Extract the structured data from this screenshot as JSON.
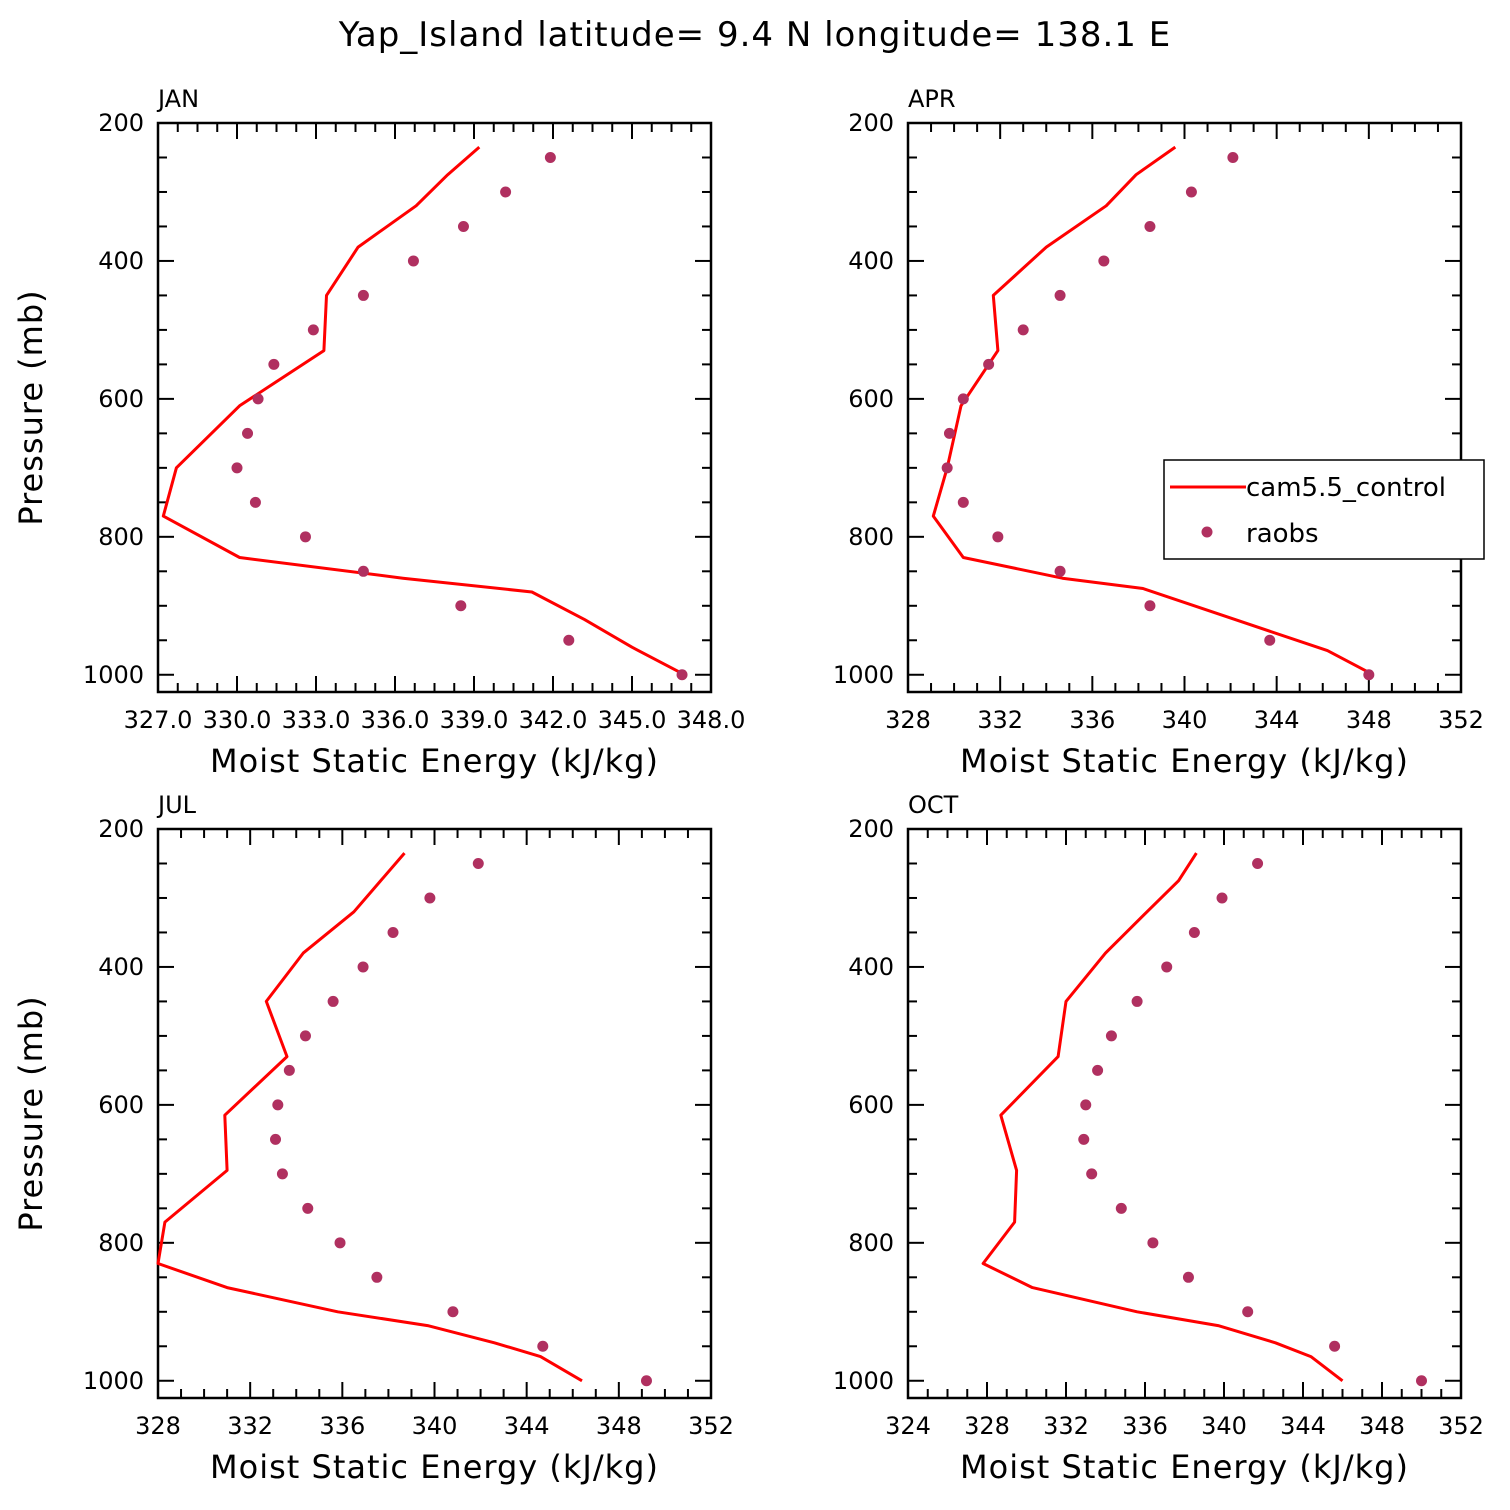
{
  "figure": {
    "title": "Yap_Island  latitude= 9.4 N longitude= 138.1 E",
    "colors": {
      "model": "#ff0000",
      "obs": "#b03060",
      "axis": "#000000"
    }
  },
  "legend": {
    "panel": 1,
    "entries": [
      {
        "label": "cam5.5_control",
        "symbol": "line",
        "color": "#ff0000"
      },
      {
        "label": "raobs",
        "symbol": "dot",
        "color": "#b03060"
      }
    ]
  },
  "chart_data": [
    {
      "type": "line",
      "panel_label": "JAN",
      "xlabel": "Moist Static Energy (kJ/kg)",
      "ylabel": "Pressure (mb)",
      "xlim": [
        327,
        348
      ],
      "ylim": [
        1000,
        200
      ],
      "xticks": [
        327,
        330,
        333,
        336,
        339,
        342,
        345,
        348
      ],
      "xtick_labels": [
        "327.0",
        "330.0",
        "333.0",
        "336.0",
        "339.0",
        "342.0",
        "345.0",
        "348.0"
      ],
      "yticks": [
        200,
        400,
        600,
        800,
        1000
      ],
      "ytick_labels": [
        "200",
        "400",
        "600",
        "800",
        "1000"
      ],
      "show_ylabel": true,
      "series": [
        {
          "name": "cam5.5_control",
          "kind": "line",
          "x": [
            347.0,
            345.0,
            343.2,
            341.2,
            336.3,
            330.1,
            327.2,
            327.7,
            330.1,
            333.3,
            333.4,
            334.6,
            336.8,
            338.0,
            339.2
          ],
          "y": [
            1000,
            960,
            920,
            880,
            860,
            830,
            770,
            700,
            610,
            530,
            450,
            380,
            320,
            275,
            235
          ]
        },
        {
          "name": "raobs",
          "kind": "dots",
          "x": [
            346.9,
            342.6,
            338.5,
            334.8,
            332.6,
            330.7,
            330.0,
            330.4,
            330.8,
            331.4,
            332.9,
            334.8,
            336.7,
            338.6,
            340.2,
            341.9
          ],
          "y": [
            1000,
            950,
            900,
            850,
            800,
            750,
            700,
            650,
            600,
            550,
            500,
            450,
            400,
            350,
            300,
            250
          ]
        }
      ]
    },
    {
      "type": "line",
      "panel_label": "APR",
      "xlabel": "Moist Static Energy (kJ/kg)",
      "ylabel": "",
      "xlim": [
        328,
        352
      ],
      "ylim": [
        1000,
        200
      ],
      "xticks": [
        328,
        332,
        336,
        340,
        344,
        348,
        352
      ],
      "xtick_labels": [
        "328",
        "332",
        "336",
        "340",
        "344",
        "348",
        "352"
      ],
      "yticks": [
        200,
        400,
        600,
        800,
        1000
      ],
      "ytick_labels": [
        "200",
        "400",
        "600",
        "800",
        "1000"
      ],
      "show_ylabel": false,
      "series": [
        {
          "name": "cam5.5_control",
          "kind": "line",
          "x": [
            348.2,
            346.2,
            342.2,
            338.2,
            334.7,
            330.4,
            329.1,
            329.7,
            330.3,
            331.9,
            331.7,
            334.0,
            336.6,
            337.9,
            339.6
          ],
          "y": [
            1000,
            965,
            920,
            875,
            860,
            830,
            770,
            700,
            610,
            530,
            450,
            380,
            320,
            275,
            235
          ]
        },
        {
          "name": "raobs",
          "kind": "dots",
          "x": [
            348.0,
            343.7,
            338.5,
            334.6,
            331.9,
            330.4,
            329.7,
            329.8,
            330.4,
            331.5,
            333.0,
            334.6,
            336.5,
            338.5,
            340.3,
            342.1
          ],
          "y": [
            1000,
            950,
            900,
            850,
            800,
            750,
            700,
            650,
            600,
            550,
            500,
            450,
            400,
            350,
            300,
            250
          ]
        }
      ]
    },
    {
      "type": "line",
      "panel_label": "JUL",
      "xlabel": "Moist Static Energy (kJ/kg)",
      "ylabel": "Pressure (mb)",
      "xlim": [
        328,
        352
      ],
      "ylim": [
        1000,
        200
      ],
      "xticks": [
        328,
        332,
        336,
        340,
        344,
        348,
        352
      ],
      "xtick_labels": [
        "328",
        "332",
        "336",
        "340",
        "344",
        "348",
        "352"
      ],
      "yticks": [
        200,
        400,
        600,
        800,
        1000
      ],
      "ytick_labels": [
        "200",
        "400",
        "600",
        "800",
        "1000"
      ],
      "show_ylabel": true,
      "series": [
        {
          "name": "cam5.5_control",
          "kind": "line",
          "x": [
            346.4,
            344.6,
            342.6,
            339.7,
            335.8,
            331.0,
            328.0,
            328.3,
            331.0,
            330.9,
            333.6,
            332.7,
            334.3,
            336.5,
            338.7
          ],
          "y": [
            1000,
            965,
            945,
            920,
            900,
            865,
            830,
            770,
            695,
            615,
            530,
            450,
            380,
            320,
            235
          ]
        },
        {
          "name": "raobs",
          "kind": "dots",
          "x": [
            349.2,
            344.7,
            340.8,
            337.5,
            335.9,
            334.5,
            333.4,
            333.1,
            333.2,
            333.7,
            334.4,
            335.6,
            336.9,
            338.2,
            339.8,
            341.9
          ],
          "y": [
            1000,
            950,
            900,
            850,
            800,
            750,
            700,
            650,
            600,
            550,
            500,
            450,
            400,
            350,
            300,
            250
          ]
        }
      ]
    },
    {
      "type": "line",
      "panel_label": "OCT",
      "xlabel": "Moist Static Energy (kJ/kg)",
      "ylabel": "",
      "xlim": [
        324,
        352
      ],
      "ylim": [
        1000,
        200
      ],
      "xticks": [
        324,
        328,
        332,
        336,
        340,
        344,
        348,
        352
      ],
      "xtick_labels": [
        "324",
        "328",
        "332",
        "336",
        "340",
        "344",
        "348",
        "352"
      ],
      "yticks": [
        200,
        400,
        600,
        800,
        1000
      ],
      "ytick_labels": [
        "200",
        "400",
        "600",
        "800",
        "1000"
      ],
      "show_ylabel": false,
      "series": [
        {
          "name": "cam5.5_control",
          "kind": "line",
          "x": [
            346.0,
            344.4,
            342.6,
            339.7,
            335.6,
            330.3,
            327.8,
            329.4,
            329.5,
            328.7,
            331.6,
            332.0,
            334.0,
            336.1,
            337.7,
            338.6
          ],
          "y": [
            1000,
            965,
            945,
            920,
            900,
            865,
            830,
            770,
            695,
            615,
            530,
            450,
            380,
            320,
            275,
            235
          ]
        },
        {
          "name": "raobs",
          "kind": "dots",
          "x": [
            350.0,
            345.6,
            341.2,
            338.2,
            336.4,
            334.8,
            333.3,
            332.9,
            333.0,
            333.6,
            334.3,
            335.6,
            337.1,
            338.5,
            339.9,
            341.7
          ],
          "y": [
            1000,
            950,
            900,
            850,
            800,
            750,
            700,
            650,
            600,
            550,
            500,
            450,
            400,
            350,
            300,
            250
          ]
        }
      ]
    }
  ]
}
